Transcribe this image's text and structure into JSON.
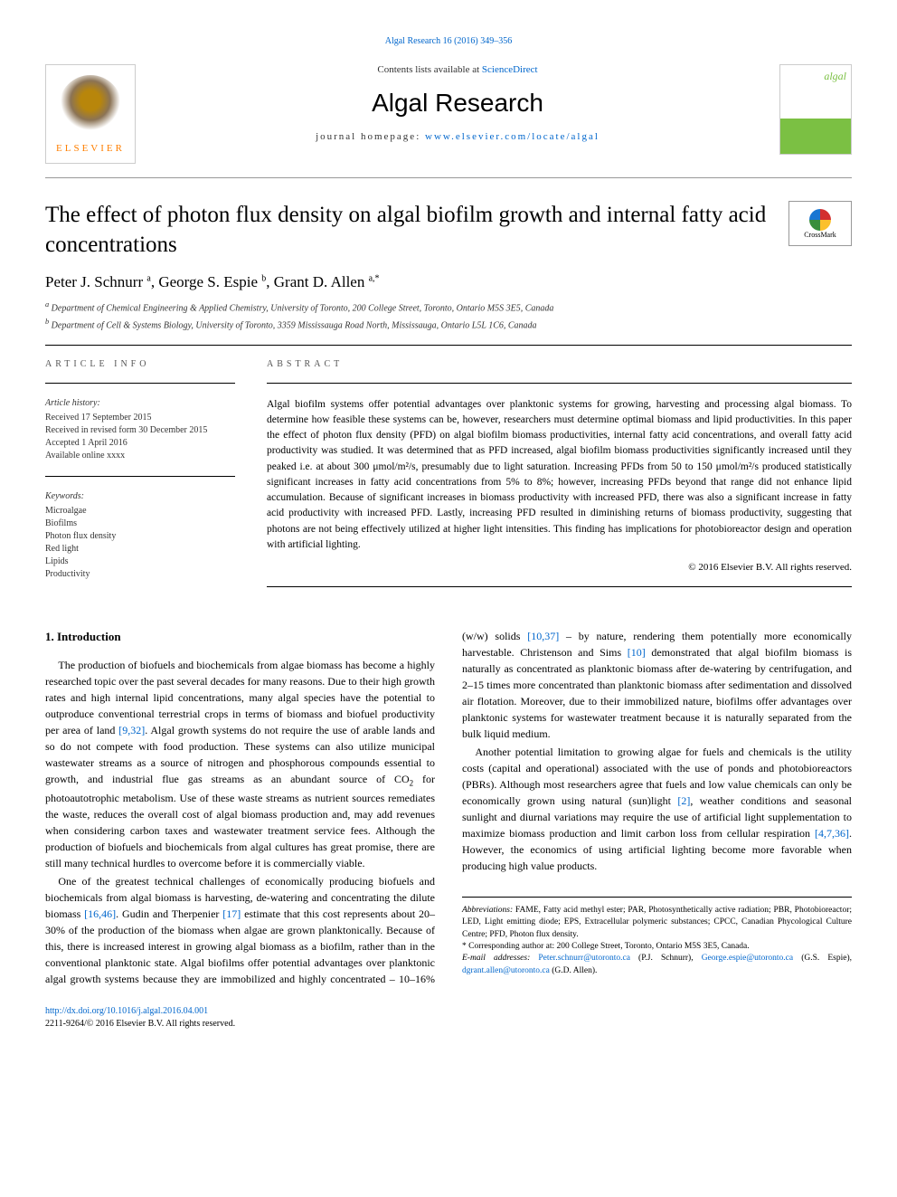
{
  "header": {
    "citation_link": "Algal Research 16 (2016) 349–356",
    "contents_text": "Contents lists available at ",
    "contents_link": "ScienceDirect",
    "journal_name": "Algal Research",
    "homepage_label": "journal homepage: ",
    "homepage_url": "www.elsevier.com/locate/algal",
    "publisher_label": "ELSEVIER",
    "cover_brand": "algal"
  },
  "crossmark_label": "CrossMark",
  "title": "The effect of photon flux density on algal biofilm growth and internal fatty acid concentrations",
  "authors": [
    {
      "name": "Peter J. Schnurr",
      "affil": "a"
    },
    {
      "name": "George S. Espie",
      "affil": "b"
    },
    {
      "name": "Grant D. Allen",
      "affil": "a,*"
    }
  ],
  "affiliations": {
    "a": "Department of Chemical Engineering & Applied Chemistry, University of Toronto, 200 College Street, Toronto, Ontario M5S 3E5, Canada",
    "b": "Department of Cell & Systems Biology, University of Toronto, 3359 Mississauga Road North, Mississauga, Ontario L5L 1C6, Canada"
  },
  "article_info": {
    "heading": "article info",
    "history_label": "Article history:",
    "history": [
      "Received 17 September 2015",
      "Received in revised form 30 December 2015",
      "Accepted 1 April 2016",
      "Available online xxxx"
    ],
    "keywords_label": "Keywords:",
    "keywords": [
      "Microalgae",
      "Biofilms",
      "Photon flux density",
      "Red light",
      "Lipids",
      "Productivity"
    ]
  },
  "abstract": {
    "heading": "abstract",
    "text": "Algal biofilm systems offer potential advantages over planktonic systems for growing, harvesting and processing algal biomass. To determine how feasible these systems can be, however, researchers must determine optimal biomass and lipid productivities. In this paper the effect of photon flux density (PFD) on algal biofilm biomass productivities, internal fatty acid concentrations, and overall fatty acid productivity was studied. It was determined that as PFD increased, algal biofilm biomass productivities significantly increased until they peaked i.e. at about 300 μmol/m²/s, presumably due to light saturation. Increasing PFDs from 50 to 150 μmol/m²/s produced statistically significant increases in fatty acid concentrations from 5% to 8%; however, increasing PFDs beyond that range did not enhance lipid accumulation. Because of significant increases in biomass productivity with increased PFD, there was also a significant increase in fatty acid productivity with increased PFD. Lastly, increasing PFD resulted in diminishing returns of biomass productivity, suggesting that photons are not being effectively utilized at higher light intensities. This finding has implications for photobioreactor design and operation with artificial lighting.",
    "copyright": "© 2016 Elsevier B.V. All rights reserved."
  },
  "sections": {
    "intro_heading": "1. Introduction",
    "intro_p1_a": "The production of biofuels and biochemicals from algae biomass has become a highly researched topic over the past several decades for many reasons. Due to their high growth rates and high internal lipid concentrations, many algal species have the potential to outproduce conventional terrestrial crops in terms of biomass and biofuel productivity per area of land ",
    "intro_p1_cite1": "[9,32]",
    "intro_p1_b": ". Algal growth systems do not require the use of arable lands and so do not compete with food production. These systems can also utilize municipal wastewater streams as a source of nitrogen and phosphorous compounds essential to growth, and industrial flue gas streams as an abundant source of CO",
    "intro_p1_c": " for photoautotrophic metabolism. Use of these waste streams as nutrient sources remediates the waste, reduces the overall cost of algal biomass production and, may add revenues when considering carbon taxes and wastewater treatment service fees. Although the production of biofuels and biochemicals from algal cultures has great promise, there are still many technical hurdles to overcome before it is commercially viable.",
    "intro_p2_a": "One of the greatest technical challenges of economically producing biofuels and biochemicals from algal biomass is harvesting, de-watering and concentrating the dilute biomass ",
    "intro_p2_cite1": "[16,46]",
    "intro_p2_b": ". Gudin and Therpenier ",
    "intro_p2_cite2": "[17]",
    "intro_p2_c": " estimate that this cost represents about 20–30% of the production of the biomass when algae are grown planktonically. Because of this, there is increased interest in growing algal biomass as a biofilm, rather than in the conventional planktonic state. Algal biofilms offer potential advantages over planktonic algal growth systems because they are immobilized and highly concentrated – 10–16% (w/w) solids ",
    "intro_p2_cite3": "[10,37]",
    "intro_p2_d": " – by nature, rendering them potentially more economically harvestable. Christenson and Sims ",
    "intro_p2_cite4": "[10]",
    "intro_p2_e": " demonstrated that algal biofilm biomass is naturally as concentrated as planktonic biomass after de-watering by centrifugation, and 2–15 times more concentrated than planktonic biomass after sedimentation and dissolved air flotation. Moreover, due to their immobilized nature, biofilms offer advantages over planktonic systems for wastewater treatment because it is naturally separated from the bulk liquid medium.",
    "intro_p3_a": "Another potential limitation to growing algae for fuels and chemicals is the utility costs (capital and operational) associated with the use of ponds and photobioreactors (PBRs). Although most researchers agree that fuels and low value chemicals can only be economically grown using natural (sun)light ",
    "intro_p3_cite1": "[2]",
    "intro_p3_b": ", weather conditions and seasonal sunlight and diurnal variations may require the use of artificial light supplementation to maximize biomass production and limit carbon loss from cellular respiration ",
    "intro_p3_cite2": "[4,7,36]",
    "intro_p3_c": ". However, the economics of using artificial lighting become more favorable when producing high value products."
  },
  "footnotes": {
    "abbrev_label": "Abbreviations:",
    "abbrev_text": " FAME, Fatty acid methyl ester; PAR, Photosynthetically active radiation; PBR, Photobioreactor; LED, Light emitting diode; EPS, Extracellular polymeric substances; CPCC, Canadian Phycological Culture Centre; PFD, Photon flux density.",
    "corresp": "* Corresponding author at: 200 College Street, Toronto, Ontario M5S 3E5, Canada.",
    "email_label": "E-mail addresses: ",
    "email1": "Peter.schnurr@utoronto.ca",
    "email1_person": " (P.J. Schnurr), ",
    "email2": "George.espie@utoronto.ca",
    "email2_person": " (G.S. Espie), ",
    "email3": "dgrant.allen@utoronto.ca",
    "email3_person": " (G.D. Allen)."
  },
  "footer": {
    "doi": "http://dx.doi.org/10.1016/j.algal.2016.04.001",
    "issn": "2211-9264/© 2016 Elsevier B.V. All rights reserved."
  },
  "colors": {
    "link": "#0066cc",
    "elsevier_orange": "#ff7f00",
    "algal_green": "#7bc043"
  }
}
